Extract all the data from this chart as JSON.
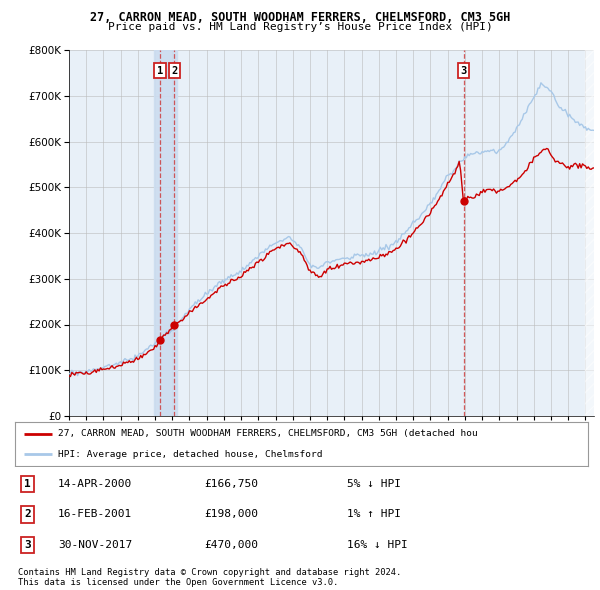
{
  "title1": "27, CARRON MEAD, SOUTH WOODHAM FERRERS, CHELMSFORD, CM3 5GH",
  "title2": "Price paid vs. HM Land Registry’s House Price Index (HPI)",
  "background_color": "#ffffff",
  "plot_bg_color": "#e8f0f8",
  "purchases": [
    {
      "date_num": 2000.29,
      "price": 166750,
      "label": "1"
    },
    {
      "date_num": 2001.12,
      "price": 198000,
      "label": "2"
    },
    {
      "date_num": 2017.92,
      "price": 470000,
      "label": "3"
    }
  ],
  "purchase_info": [
    {
      "num": "1",
      "date": "14-APR-2000",
      "price": "£166,750",
      "vs_hpi": "5% ↓ HPI"
    },
    {
      "num": "2",
      "date": "16-FEB-2001",
      "price": "£198,000",
      "vs_hpi": "1% ↑ HPI"
    },
    {
      "num": "3",
      "date": "30-NOV-2017",
      "price": "£470,000",
      "vs_hpi": "16% ↓ HPI"
    }
  ],
  "legend_line1": "27, CARRON MEAD, SOUTH WOODHAM FERRERS, CHELMSFORD, CM3 5GH (detached hou",
  "legend_line2": "HPI: Average price, detached house, Chelmsford",
  "footer1": "Contains HM Land Registry data © Crown copyright and database right 2024.",
  "footer2": "This data is licensed under the Open Government Licence v3.0.",
  "ylim": [
    0,
    800000
  ],
  "xlim_start": 1995.0,
  "xlim_end": 2025.5,
  "hpi_color": "#a8c8e8",
  "price_color": "#cc0000",
  "vline_color": "#cc3333",
  "band_color": "#ccddf0",
  "grid_color": "#bbbbbb"
}
